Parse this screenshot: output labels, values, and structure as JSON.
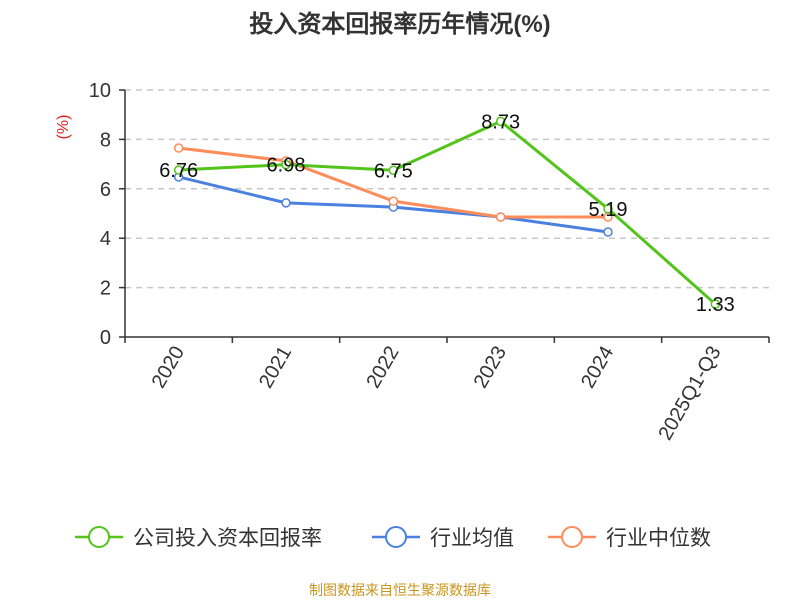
{
  "chart_data": {
    "type": "line",
    "title": "投入资本回报率历年情况(%)",
    "ylabel": "(%)",
    "xlabel": "",
    "ylim": [
      0,
      10
    ],
    "yticks": [
      0,
      2,
      4,
      6,
      8,
      10
    ],
    "grid": true,
    "legend_position": "bottom",
    "categories": [
      "2020",
      "2021",
      "2022",
      "2023",
      "2024",
      "2025Q1-Q3"
    ],
    "series": [
      {
        "name": "公司投入资本回报率",
        "color": "#52c41a",
        "values": [
          6.76,
          6.98,
          6.75,
          8.73,
          5.19,
          1.33
        ],
        "labels": [
          "6.76",
          "6.98",
          "6.75",
          "8.73",
          "5.19",
          "1.33"
        ]
      },
      {
        "name": "行业均值",
        "color": "#4a80e0",
        "values": [
          6.48,
          5.43,
          5.26,
          4.86,
          4.25,
          null
        ]
      },
      {
        "name": "行业中位数",
        "color": "#ff8c5a",
        "values": [
          7.65,
          7.13,
          5.5,
          4.86,
          4.86,
          null
        ]
      }
    ],
    "source": "制图数据来自恒生聚源数据库"
  }
}
